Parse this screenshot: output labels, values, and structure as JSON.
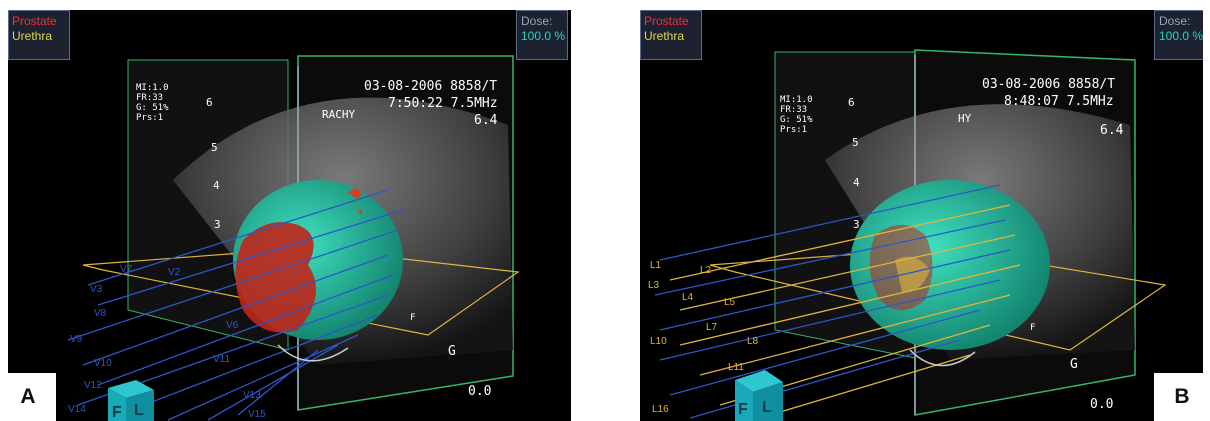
{
  "panels": [
    {
      "legend": {
        "prostate": "Prostate",
        "urethra": "Urethra"
      },
      "dose": {
        "label": "Dose:",
        "value": "100.0 %"
      },
      "info": {
        "date_code": "03-08-2006  8858/T",
        "time_freq": "7:50:22  7.5MHz",
        "depth": "6.4",
        "params": [
          "MI:1.0",
          "FR:33",
          "G: 51%",
          "Prs:1"
        ],
        "probe_tag": "RACHY",
        "zoom": "0.0",
        "g_label": "G",
        "f_label": "F"
      },
      "cube": {
        "face1": "F",
        "face2": "L"
      },
      "depth_ticks": [
        "6",
        "5",
        "4",
        "3"
      ],
      "needles": [
        "V3",
        "V7",
        "V8",
        "V9",
        "V10",
        "V11",
        "V12",
        "V13",
        "V14",
        "V15",
        "V2",
        "V6"
      ],
      "needle_color": "#2c57c9",
      "letter": "A"
    },
    {
      "legend": {
        "prostate": "Prostate",
        "urethra": "Urethra"
      },
      "dose": {
        "label": "Dose:",
        "value": "100.0 %"
      },
      "info": {
        "date_code": "03-08-2006  8858/T",
        "time_freq": "8:48:07  7.5MHz",
        "depth": "6.4",
        "params": [
          "MI:1.0",
          "FR:33",
          "G: 51%",
          "Prs:1"
        ],
        "probe_tag": "HY",
        "zoom": "0.0",
        "g_label": "G",
        "f_label": "F"
      },
      "cube": {
        "face1": "F",
        "face2": "L"
      },
      "depth_ticks": [
        "6",
        "5",
        "4",
        "3"
      ],
      "needles": [
        "L1",
        "L2",
        "L3",
        "L4",
        "L5",
        "L7",
        "L8",
        "L10",
        "L11",
        "L16"
      ],
      "needle_color": "#e0b43c",
      "letter": "B"
    }
  ],
  "colors": {
    "prostate": "#1fb89a",
    "dose_region": "#c0261c",
    "urethra": "#e6d24a",
    "frame": "#36b56b"
  }
}
